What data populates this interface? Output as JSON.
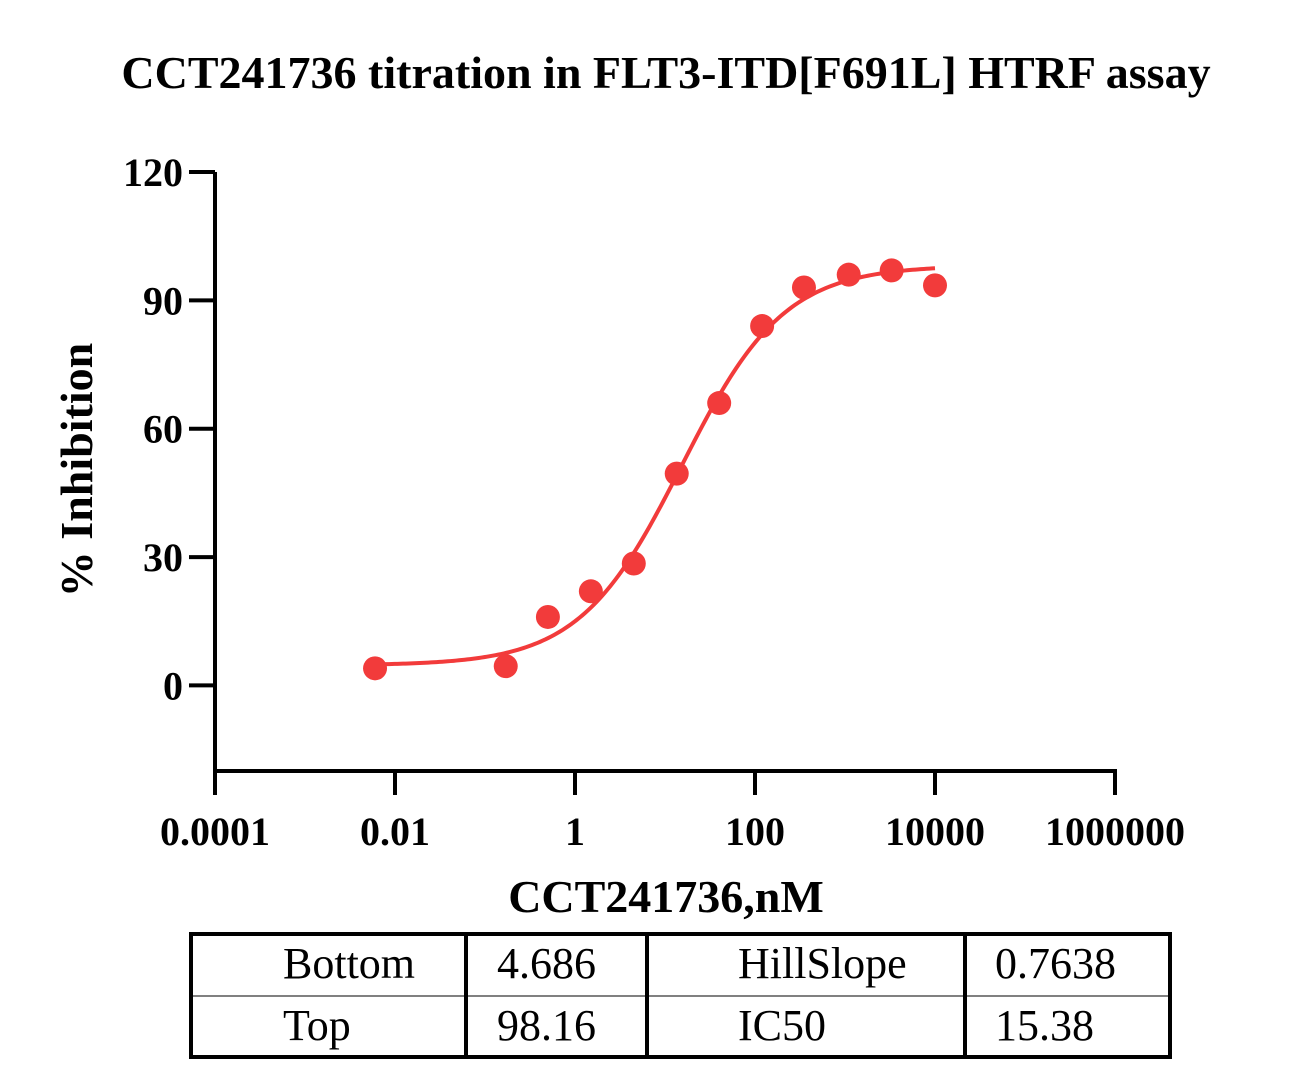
{
  "chart_data": {
    "type": "scatter",
    "title": "CCT241736 titration in FLT3-ITD[F691L] HTRF assay",
    "xlabel": "CCT241736,nM",
    "ylabel": "% Inhibition",
    "x_scale": "log10",
    "xlim": [
      0.0001,
      1000000
    ],
    "ylim": [
      -20,
      120
    ],
    "x_ticks": [
      "0.0001",
      "0.01",
      "1",
      "100",
      "10000",
      "1000000"
    ],
    "y_ticks": [
      "120",
      "90",
      "60",
      "30",
      "0"
    ],
    "marker_color": "#f23b3b",
    "curve_color": "#f23b3b",
    "series": [
      {
        "points": [
          {
            "x": 0.006,
            "y": 4
          },
          {
            "x": 0.17,
            "y": 4.5
          },
          {
            "x": 0.5,
            "y": 16
          },
          {
            "x": 1.5,
            "y": 22
          },
          {
            "x": 4.5,
            "y": 28.5
          },
          {
            "x": 13.5,
            "y": 49.5
          },
          {
            "x": 40,
            "y": 66
          },
          {
            "x": 120,
            "y": 84
          },
          {
            "x": 350,
            "y": 93
          },
          {
            "x": 1100,
            "y": 96
          },
          {
            "x": 3300,
            "y": 97
          },
          {
            "x": 10000,
            "y": 93.5
          }
        ]
      }
    ],
    "fit": {
      "bottom": 4.686,
      "top": 98.16,
      "hillslope": 0.7638,
      "ic50": 15.38,
      "x_range": [
        0.006,
        10000
      ]
    }
  },
  "table": {
    "rows": [
      [
        "Bottom",
        "4.686",
        "HillSlope",
        "0.7638"
      ],
      [
        "Top",
        "98.16",
        "IC50",
        "15.38"
      ]
    ]
  }
}
